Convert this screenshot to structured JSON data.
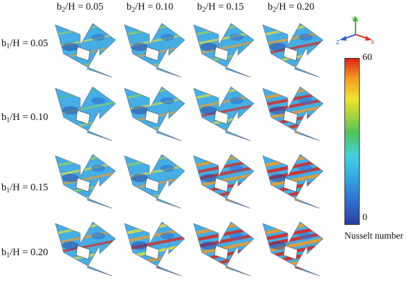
{
  "column_headers": [
    {
      "var": "b",
      "sub": "2",
      "rest": "/H = 0.05"
    },
    {
      "var": "b",
      "sub": "2",
      "rest": "/H = 0.10"
    },
    {
      "var": "b",
      "sub": "2",
      "rest": "/H = 0.15"
    },
    {
      "var": "b",
      "sub": "2",
      "rest": "/H = 0.20"
    }
  ],
  "row_headers": [
    {
      "var": "b",
      "sub": "1",
      "rest": "/H = 0.05"
    },
    {
      "var": "b",
      "sub": "1",
      "rest": "/H = 0.10"
    },
    {
      "var": "b",
      "sub": "1",
      "rest": "/H = 0.15"
    },
    {
      "var": "b",
      "sub": "1",
      "rest": "/H = 0.20"
    }
  ],
  "colorbar": {
    "max_label": "60",
    "min_label": "0",
    "title": "Nusselt number",
    "colors": [
      "#2b3fa0",
      "#2f6fd0",
      "#34b6e6",
      "#43d3d9",
      "#4fc35a",
      "#a9d63a",
      "#f1e32a",
      "#f59b22",
      "#e02219"
    ]
  },
  "axes_triad": {
    "x": "X",
    "y": "Y",
    "z": "Z",
    "colors": {
      "x": "#e0342b",
      "y": "#38b23a",
      "z": "#2f5fd0"
    }
  },
  "heat_intensity": [
    [
      0.25,
      0.35,
      0.45,
      0.55
    ],
    [
      0.2,
      0.35,
      0.5,
      0.75
    ],
    [
      0.45,
      0.4,
      0.75,
      0.9
    ],
    [
      0.5,
      0.7,
      0.85,
      0.95
    ]
  ]
}
